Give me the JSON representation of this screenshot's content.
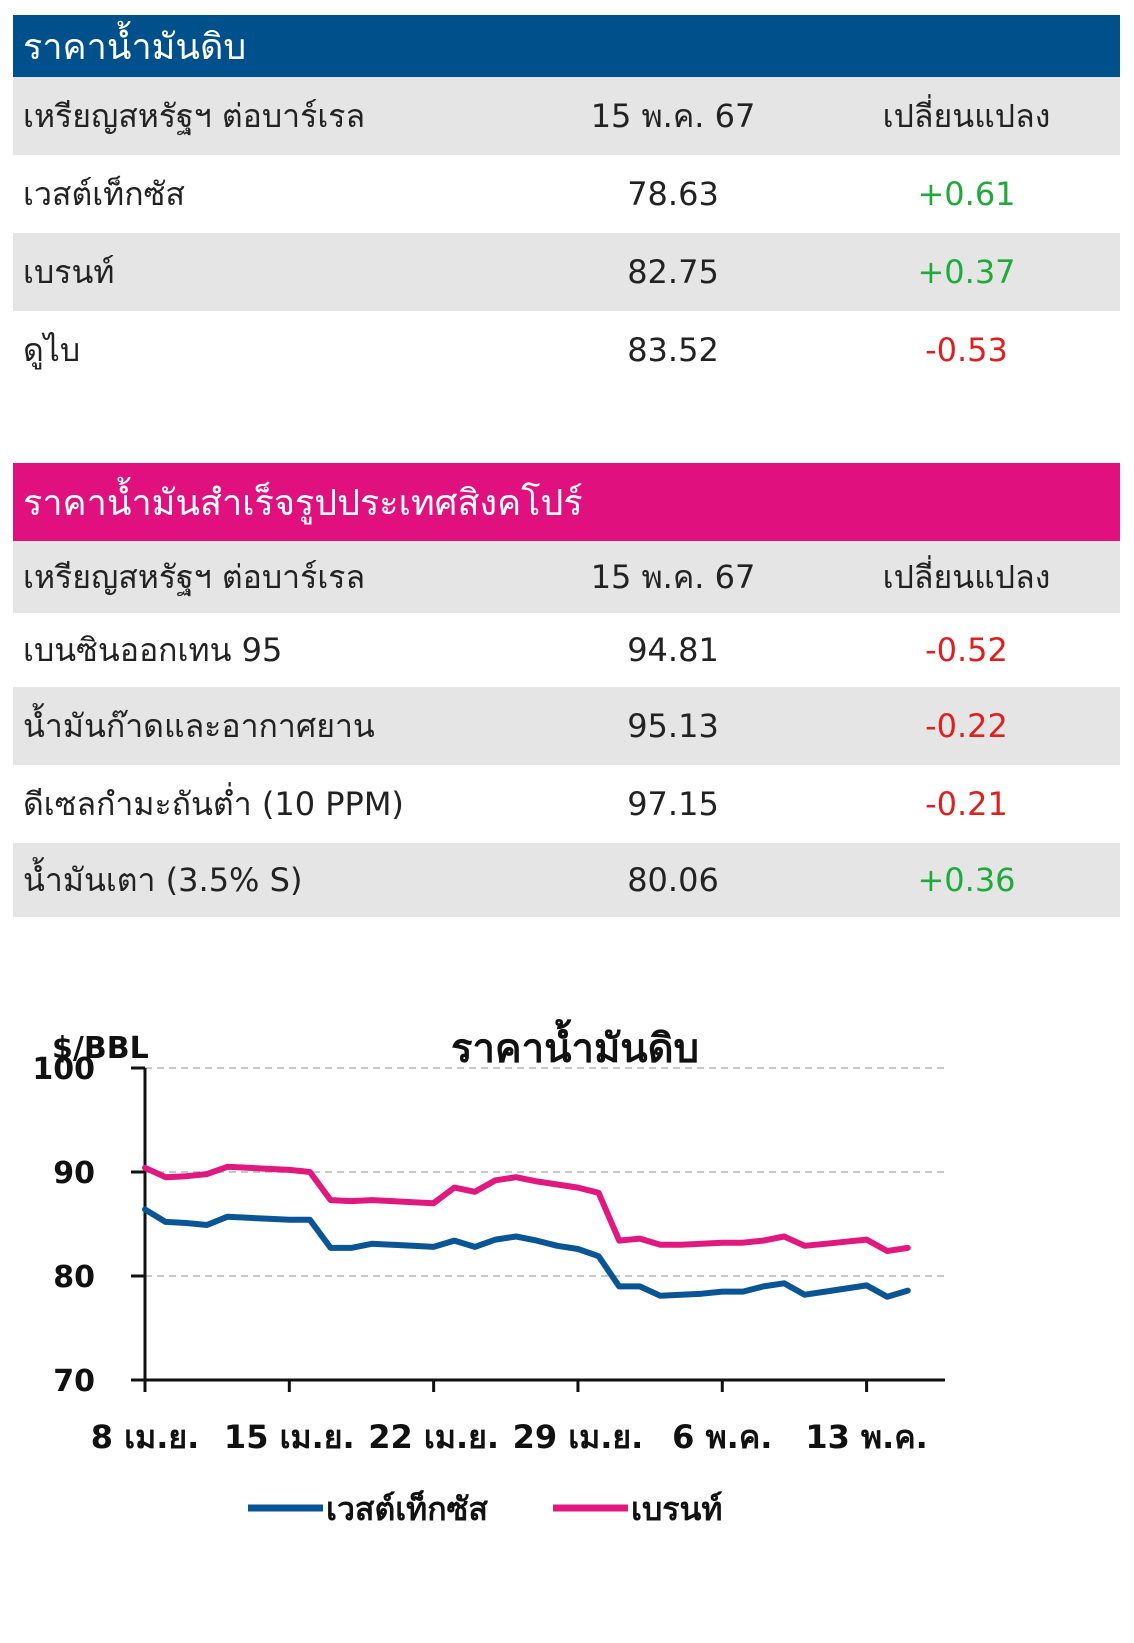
{
  "crude_table": {
    "title": "ราคาน้ำมันดิบ",
    "header": {
      "label": "เหรียญสหรัฐฯ ต่อบาร์เรล",
      "date": "15 พ.ค. 67",
      "change": "เปลี่ยนแปลง"
    },
    "rows": [
      {
        "name": "เวสต์เท็กซัส",
        "price": "78.63",
        "change": "+0.61"
      },
      {
        "name": "เบรนท์",
        "price": "82.75",
        "change": "+0.37"
      },
      {
        "name": "ดูไบ",
        "price": "83.52",
        "change": "-0.53"
      }
    ]
  },
  "singapore_table": {
    "title": "ราคาน้ำมันสำเร็จรูปประเทศสิงคโปร์",
    "header": {
      "label": "เหรียญสหรัฐฯ ต่อบาร์เรล",
      "date": "15 พ.ค. 67",
      "change": "เปลี่ยนแปลง"
    },
    "rows": [
      {
        "name": "เบนซินออกเทน 95",
        "price": "94.81",
        "change": "-0.52"
      },
      {
        "name": "น้ำมันก๊าดและอากาศยาน",
        "price": "95.13",
        "change": "-0.22"
      },
      {
        "name": "ดีเซลกำมะถันต่ำ (10 PPM)",
        "price": "97.15",
        "change": "-0.21"
      },
      {
        "name": "น้ำมันเตา (3.5% S)",
        "price": "80.06",
        "change": "+0.36"
      }
    ]
  },
  "colors": {
    "crude_header": "#00508c",
    "singapore_header": "#e0107e",
    "positive": "#1faa3a",
    "negative": "#e0201e",
    "wti": "#0a5596",
    "brent": "#e0187f"
  },
  "chart_data": {
    "type": "line",
    "title": "ราคาน้ำมันดิบ",
    "ylabel": "$/BBL",
    "ylim": [
      70,
      100
    ],
    "yticks": [
      70,
      80,
      90,
      100
    ],
    "xlim": [
      0,
      37
    ],
    "xticks": [
      {
        "label": "8 เม.ย.",
        "x": 0
      },
      {
        "label": "15 เม.ย.",
        "x": 7
      },
      {
        "label": "22 เม.ย.",
        "x": 14
      },
      {
        "label": "29 เม.ย.",
        "x": 21
      },
      {
        "label": "6 พ.ค.",
        "x": 28
      },
      {
        "label": "13 พ.ค.",
        "x": 35
      }
    ],
    "grid": true,
    "legend": "bottom",
    "series": [
      {
        "name": "เวสต์เท็กซัส",
        "color": "#0a5596",
        "x": [
          0,
          1,
          2,
          3,
          4,
          5,
          6,
          7,
          8,
          9,
          10,
          11,
          12,
          13,
          14,
          15,
          16,
          17,
          18,
          19,
          20,
          21,
          22,
          23,
          24,
          25,
          26,
          27,
          28,
          29,
          30,
          31,
          32,
          33,
          34,
          35,
          36,
          37
        ],
        "y": [
          86.4,
          85.2,
          85.1,
          84.9,
          85.7,
          85.6,
          85.5,
          85.4,
          85.4,
          82.7,
          82.7,
          83.1,
          83.0,
          82.9,
          82.8,
          83.4,
          82.8,
          83.5,
          83.8,
          83.4,
          82.9,
          82.6,
          81.9,
          79.0,
          79.0,
          78.1,
          78.2,
          78.3,
          78.5,
          78.5,
          79.0,
          79.3,
          78.2,
          78.5,
          78.8,
          79.1,
          78.0,
          78.6
        ]
      },
      {
        "name": "เบรนท์",
        "color": "#e0187f",
        "x": [
          0,
          1,
          2,
          3,
          4,
          5,
          6,
          7,
          8,
          9,
          10,
          11,
          12,
          13,
          14,
          15,
          16,
          17,
          18,
          19,
          20,
          21,
          22,
          23,
          24,
          25,
          26,
          27,
          28,
          29,
          30,
          31,
          32,
          33,
          34,
          35,
          36,
          37
        ],
        "y": [
          90.4,
          89.5,
          89.6,
          89.8,
          90.5,
          90.4,
          90.3,
          90.2,
          90.0,
          87.3,
          87.2,
          87.3,
          87.2,
          87.1,
          87.0,
          88.5,
          88.1,
          89.2,
          89.5,
          89.1,
          88.8,
          88.5,
          88.0,
          83.4,
          83.6,
          83.0,
          83.0,
          83.1,
          83.2,
          83.2,
          83.4,
          83.8,
          82.9,
          83.1,
          83.3,
          83.5,
          82.4,
          82.7
        ]
      }
    ]
  }
}
